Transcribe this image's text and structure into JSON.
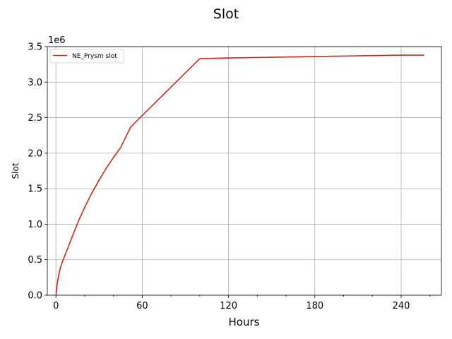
{
  "chart_data": {
    "type": "line",
    "title": "Slot",
    "xlabel": "Hours",
    "ylabel": "Slot",
    "y_offset_text": "1e6",
    "xlim": [
      -6,
      268
    ],
    "ylim": [
      0,
      3500000
    ],
    "x_ticks": [
      0,
      60,
      120,
      180,
      240
    ],
    "x_tick_labels": [
      "0",
      "60",
      "120",
      "180",
      "240"
    ],
    "y_ticks": [
      0,
      500000,
      1000000,
      1500000,
      2000000,
      2500000,
      3000000,
      3500000
    ],
    "y_tick_labels": [
      "0.0",
      "0.5",
      "1.0",
      "1.5",
      "2.0",
      "2.5",
      "3.0",
      "3.5"
    ],
    "grid": true,
    "legend_position": "top-left",
    "series": [
      {
        "name": "NE_Prysm slot",
        "color": "#c8281e",
        "x": [
          0,
          1,
          2,
          3,
          5,
          8,
          12,
          16,
          20,
          25,
          30,
          35,
          40,
          45,
          52,
          60,
          70,
          80,
          90,
          100,
          120,
          150,
          180,
          210,
          240,
          256
        ],
        "y": [
          0,
          180000,
          290000,
          380000,
          500000,
          650000,
          860000,
          1060000,
          1240000,
          1440000,
          1620000,
          1790000,
          1940000,
          2080000,
          2370000,
          2530000,
          2730000,
          2930000,
          3130000,
          3330000,
          3340000,
          3350000,
          3360000,
          3370000,
          3380000,
          3380000
        ]
      }
    ]
  }
}
